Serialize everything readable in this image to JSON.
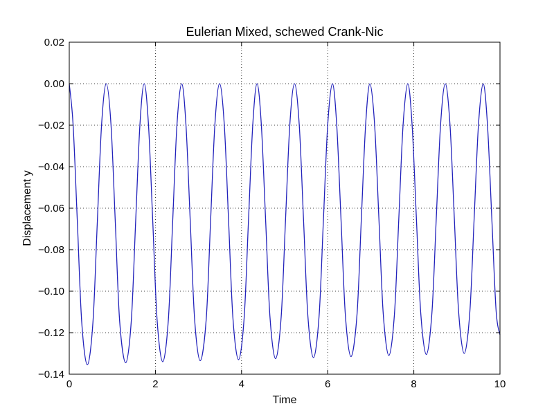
{
  "chart_data": {
    "type": "line",
    "title": "Eulerian Mixed, schewed Crank-Nic",
    "xlabel": "Time",
    "ylabel": "Displacement y",
    "xlim": [
      0,
      10
    ],
    "ylim": [
      -0.14,
      0.02
    ],
    "x_ticks": [
      0,
      2,
      4,
      6,
      8,
      10
    ],
    "x_tick_labels": [
      "0",
      "2",
      "4",
      "6",
      "8",
      "10"
    ],
    "y_ticks": [
      0.02,
      0.0,
      -0.02,
      -0.04,
      -0.06,
      -0.08,
      -0.1,
      -0.12,
      -0.14
    ],
    "y_tick_labels": [
      "0.02",
      "0.00",
      "−0.02",
      "−0.04",
      "−0.06",
      "−0.08",
      "−0.10",
      "−0.12",
      "−0.14"
    ],
    "grid": true,
    "line_color": "#2222bb",
    "series": [
      {
        "x": [
          0,
          0.09,
          0.19,
          0.29,
          0.42,
          0.55,
          0.65,
          0.75,
          0.86,
          0.97,
          1.07,
          1.17,
          1.31,
          1.44,
          1.54,
          1.64,
          1.74,
          1.84,
          1.94,
          2.04,
          2.17,
          2.3,
          2.4,
          2.5,
          2.61,
          2.71,
          2.81,
          2.91,
          3.04,
          3.18,
          3.28,
          3.38,
          3.49,
          3.6,
          3.7,
          3.8,
          3.93,
          4.06,
          4.16,
          4.26,
          4.36,
          4.46,
          4.56,
          4.66,
          4.79,
          4.92,
          5.02,
          5.12,
          5.23,
          5.34,
          5.44,
          5.54,
          5.67,
          5.8,
          5.9,
          6.0,
          6.11,
          6.21,
          6.31,
          6.41,
          6.54,
          6.68,
          6.78,
          6.88,
          6.98,
          7.09,
          7.19,
          7.29,
          7.42,
          7.55,
          7.65,
          7.75,
          7.86,
          7.96,
          8.06,
          8.16,
          8.29,
          8.42,
          8.52,
          8.62,
          8.73,
          8.84,
          8.94,
          9.04,
          9.17,
          9.3,
          9.4,
          9.5,
          9.61,
          9.71,
          9.81,
          9.91,
          10.0
        ],
        "y": [
          0.0,
          -0.02,
          -0.0675,
          -0.115,
          -0.1355,
          -0.115,
          -0.0675,
          -0.02,
          0.0,
          -0.02,
          -0.0672,
          -0.1144,
          -0.1345,
          -0.1144,
          -0.0672,
          -0.02,
          0.0,
          -0.02,
          -0.067,
          -0.114,
          -0.134,
          -0.114,
          -0.067,
          -0.02,
          0.0,
          -0.02,
          -0.0667,
          -0.1134,
          -0.1335,
          -0.1134,
          -0.0667,
          -0.02,
          0.0,
          -0.02,
          -0.0665,
          -0.113,
          -0.133,
          -0.113,
          -0.0665,
          -0.02,
          0.0,
          -0.02,
          -0.0662,
          -0.1124,
          -0.1325,
          -0.1124,
          -0.0662,
          -0.02,
          0.0,
          -0.02,
          -0.066,
          -0.112,
          -0.132,
          -0.112,
          -0.066,
          -0.02,
          0.0,
          -0.02,
          -0.0657,
          -0.1114,
          -0.1315,
          -0.1114,
          -0.0657,
          -0.02,
          0.0,
          -0.02,
          -0.0655,
          -0.111,
          -0.131,
          -0.111,
          -0.0655,
          -0.02,
          0.0,
          -0.02,
          -0.0652,
          -0.1104,
          -0.1305,
          -0.1104,
          -0.0652,
          -0.02,
          0.0,
          -0.02,
          -0.065,
          -0.11,
          -0.13,
          -0.11,
          -0.065,
          -0.02,
          0.0,
          -0.02,
          -0.0648,
          -0.1095,
          -0.121
        ]
      }
    ]
  }
}
